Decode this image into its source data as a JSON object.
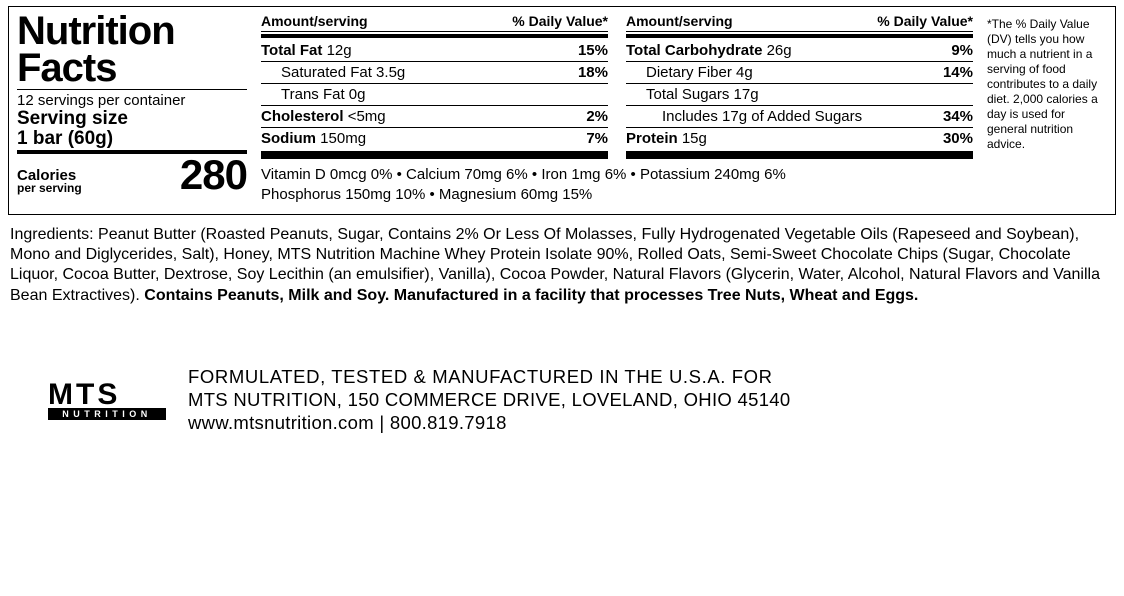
{
  "title_line1": "Nutrition",
  "title_line2": "Facts",
  "servings_per_container": "12 servings per container",
  "serving_size_label": "Serving size",
  "serving_size_value": "1 bar (60g)",
  "calories_label": "Calories",
  "calories_sublabel": "per serving",
  "calories_value": "280",
  "col_hdr_amount": "Amount/serving",
  "col_hdr_dv": "% Daily Value*",
  "col1": [
    {
      "label": "Total Fat",
      "amount": "12g",
      "dv": "15%",
      "bold": true,
      "indent": 0
    },
    {
      "label": "Saturated Fat",
      "amount": "3.5g",
      "dv": "18%",
      "bold": false,
      "indent": 1
    },
    {
      "label": "Trans Fat",
      "amount": "0g",
      "dv": "",
      "bold": false,
      "indent": 1
    },
    {
      "label": "Cholesterol",
      "amount": "<5mg",
      "dv": "2%",
      "bold": true,
      "indent": 0
    },
    {
      "label": "Sodium",
      "amount": "150mg",
      "dv": "7%",
      "bold": true,
      "indent": 0
    }
  ],
  "col2": [
    {
      "label": "Total Carbohydrate",
      "amount": "26g",
      "dv": "9%",
      "bold": true,
      "indent": 0
    },
    {
      "label": "Dietary Fiber",
      "amount": "4g",
      "dv": "14%",
      "bold": false,
      "indent": 1
    },
    {
      "label": "Total Sugars",
      "amount": "17g",
      "dv": "",
      "bold": false,
      "indent": 1
    },
    {
      "label": "Includes 17g of Added Sugars",
      "amount": "",
      "dv": "34%",
      "bold": false,
      "indent": 2
    },
    {
      "label": "Protein",
      "amount": "15g",
      "dv": "30%",
      "bold": true,
      "indent": 0
    }
  ],
  "vitamins_line1": "Vitamin D 0mcg 0%  •  Calcium 70mg 6%  •  Iron 1mg 6%  •  Potassium 240mg 6%",
  "vitamins_line2": "Phosphorus 150mg 10%  •  Magnesium 60mg 15%",
  "dv_note": "*The % Daily Value (DV) tells you how much a nutrient in a serving of food contributes to a daily diet. 2,000 calories a day is used for general nutrition advice.",
  "ingredients_text": "Ingredients: Peanut Butter (Roasted Peanuts, Sugar, Contains 2% Or Less Of Molasses, Fully Hydrogenated Vegetable Oils (Rapeseed and Soybean), Mono and Diglycerides, Salt), Honey, MTS Nutrition Machine Whey Protein Isolate 90%, Rolled Oats, Semi-Sweet Chocolate Chips (Sugar, Chocolate Liquor, Cocoa Butter, Dextrose, Soy Lecithin (an emulsifier), Vanilla), Cocoa Powder, Natural Flavors (Glycerin, Water, Alcohol, Natural Flavors and Vanilla Bean Extractives). ",
  "allergen_text": "Contains Peanuts, Milk and Soy. Manufactured in a facility that processes Tree Nuts, Wheat and Eggs.",
  "logo_top": "MTS",
  "logo_bot": "NUTRITION",
  "footer_line1": "FORMULATED, TESTED & MANUFACTURED IN THE U.S.A. FOR",
  "footer_line2": "MTS NUTRITION, 150 COMMERCE DRIVE, LOVELAND, OHIO 45140",
  "footer_line3": "www.mtsnutrition.com | 800.819.7918"
}
